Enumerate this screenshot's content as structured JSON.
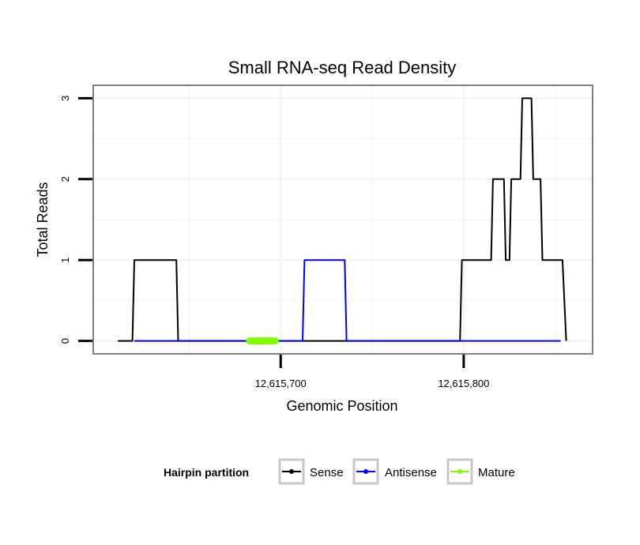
{
  "chart_data": {
    "type": "line",
    "title": "Small RNA-seq Read Density",
    "xlabel": "Genomic Position",
    "ylabel": "Total Reads",
    "xlim": [
      12615598,
      12615870
    ],
    "ylim": [
      -0.15,
      3.15
    ],
    "x_ticks": [
      {
        "value": 12615700,
        "label": "12,615,700"
      },
      {
        "value": 12615800,
        "label": "12,615,800"
      }
    ],
    "y_ticks": [
      {
        "value": 0,
        "label": "0"
      },
      {
        "value": 1,
        "label": "1"
      },
      {
        "value": 2,
        "label": "2"
      },
      {
        "value": 3,
        "label": "3"
      }
    ],
    "grid": true,
    "legend": {
      "title": "Hairpin partition",
      "position": "bottom",
      "entries": [
        "Sense",
        "Antisense",
        "Mature"
      ]
    },
    "series": [
      {
        "name": "Sense",
        "color": "#000000",
        "points": [
          [
            12615611,
            0
          ],
          [
            12615619,
            0
          ],
          [
            12615620,
            1
          ],
          [
            12615643,
            1
          ],
          [
            12615644,
            0
          ],
          [
            12615798,
            0
          ],
          [
            12615799,
            1
          ],
          [
            12615815,
            1
          ],
          [
            12615816,
            2
          ],
          [
            12615822,
            2
          ],
          [
            12615823,
            1
          ],
          [
            12615825,
            1
          ],
          [
            12615826,
            2
          ],
          [
            12615831,
            2
          ],
          [
            12615832,
            3
          ],
          [
            12615837,
            3
          ],
          [
            12615838,
            2
          ],
          [
            12615842,
            2
          ],
          [
            12615843,
            1
          ],
          [
            12615854,
            1
          ],
          [
            12615856,
            0
          ]
        ]
      },
      {
        "name": "Antisense",
        "color": "#0000ff",
        "points": [
          [
            12615620,
            0
          ],
          [
            12615643,
            0
          ],
          [
            12615644,
            0
          ],
          [
            12615712,
            0
          ],
          [
            12615713,
            1
          ],
          [
            12615735,
            1
          ],
          [
            12615736,
            0
          ],
          [
            12615853,
            0
          ]
        ]
      },
      {
        "name": "Mature",
        "color": "#7fff00",
        "points": [
          [
            12615683,
            0
          ],
          [
            12615697,
            0
          ]
        ]
      }
    ]
  }
}
